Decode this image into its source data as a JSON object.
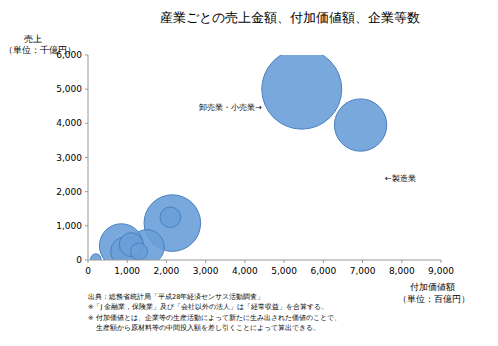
{
  "chart_data": {
    "type": "bubble",
    "title": "産業ごとの売上金額、付加価値額、企業等数",
    "xlabel": [
      "付加価値額",
      "（単位：百億円）"
    ],
    "ylabel": [
      "売上",
      "（単位：千億円）"
    ],
    "x": [
      5450,
      6950,
      2150,
      2100,
      1500,
      850,
      950,
      1100,
      1300,
      200
    ],
    "values": [
      5000,
      3950,
      1080,
      1250,
      380,
      420,
      250,
      450,
      250,
      30
    ],
    "sizes": [
      900000,
      385000,
      450000,
      60000,
      170000,
      270000,
      120000,
      80000,
      40000,
      15000
    ],
    "color": "#6a9fd8",
    "xlim": [
      0,
      9000
    ],
    "xticks": [
      0,
      {
        "value": 1000,
        "label": "1,000"
      },
      {
        "value": 2000,
        "label": "2,000"
      },
      {
        "value": 3000,
        "label": "3,000"
      },
      {
        "value": 4000,
        "label": "4,000"
      },
      {
        "value": 5000,
        "label": "5,000"
      },
      {
        "value": 6000,
        "label": "6,000"
      },
      {
        "value": 7000,
        "label": "7,000"
      },
      {
        "value": 8000,
        "label": "8,000"
      },
      {
        "value": 9000,
        "label": "9,000"
      }
    ],
    "ylim": [
      0,
      6000
    ],
    "yticks": [
      0,
      {
        "value": 1000,
        "label": "1,000"
      },
      {
        "value": 2000,
        "label": "2,000"
      },
      {
        "value": 3000,
        "label": "3,000"
      },
      {
        "value": 4000,
        "label": "4,000"
      },
      {
        "value": 5000,
        "label": "5,000"
      },
      {
        "value": 6000,
        "label": "6,000"
      }
    ],
    "grid": false,
    "annotations": [
      "卸売業・小売業→",
      "←製造業"
    ],
    "notes": [
      "出典：総務省統計局「平成28年経済センサス活動調査」",
      "※「J 金融業，保険業」及び「会社以外の法人」は「経常収益」を合算する。",
      "※ 付加価値とは、企業等の生産活動によって新たに生み出された価値のことで、",
      "生産額から原材料等の中間投入額を差し引くことによって算出できる。"
    ]
  }
}
